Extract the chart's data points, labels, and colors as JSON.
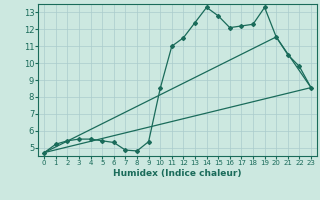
{
  "title": "",
  "xlabel": "Humidex (Indice chaleur)",
  "ylabel": "",
  "bg_color": "#cce8e0",
  "grid_color": "#aacccc",
  "line_color": "#1a6b5a",
  "xlim": [
    -0.5,
    23.5
  ],
  "ylim": [
    4.5,
    13.5
  ],
  "xticks": [
    0,
    1,
    2,
    3,
    4,
    5,
    6,
    7,
    8,
    9,
    10,
    11,
    12,
    13,
    14,
    15,
    16,
    17,
    18,
    19,
    20,
    21,
    22,
    23
  ],
  "yticks": [
    5,
    6,
    7,
    8,
    9,
    10,
    11,
    12,
    13
  ],
  "line1_x": [
    0,
    1,
    2,
    3,
    4,
    5,
    6,
    7,
    8,
    9,
    10,
    11,
    12,
    13,
    14,
    15,
    16,
    17,
    18,
    19,
    20,
    21,
    22,
    23
  ],
  "line1_y": [
    4.7,
    5.2,
    5.4,
    5.5,
    5.5,
    5.4,
    5.3,
    4.85,
    4.8,
    5.35,
    8.5,
    11.0,
    11.5,
    12.4,
    13.3,
    12.8,
    12.1,
    12.2,
    12.3,
    13.3,
    11.55,
    10.5,
    9.8,
    8.55
  ],
  "line2_x": [
    0,
    23
  ],
  "line2_y": [
    4.7,
    8.55
  ],
  "line3_x": [
    0,
    20,
    23
  ],
  "line3_y": [
    4.7,
    11.55,
    8.55
  ]
}
